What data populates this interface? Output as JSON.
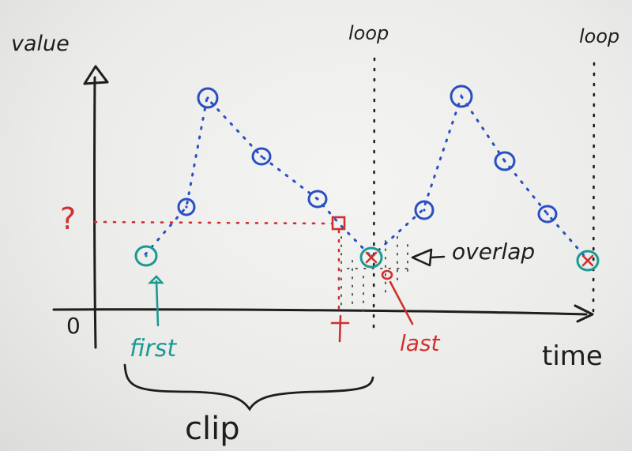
{
  "labels": {
    "value_axis": "value",
    "time_axis": "time",
    "origin": "0",
    "question": "?",
    "loop_first": "loop",
    "loop_second": "loop",
    "overlap": "overlap",
    "first": "first",
    "last": "last",
    "t_marker": "t",
    "clip": "clip"
  },
  "colors": {
    "ink": "#1e1e1e",
    "blue": "#2a4fc4",
    "red": "#d0302e",
    "teal": "#1a9a92",
    "board": "#ededeb"
  }
}
